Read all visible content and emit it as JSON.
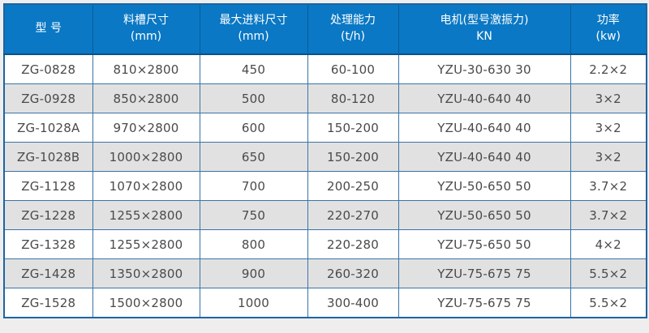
{
  "colors": {
    "header_bg": "#0a78c4",
    "header_text": "#ffffff",
    "header_separator": "#0b5c97",
    "header_bottom_border": "#0a5088",
    "cell_border": "#3a74a8",
    "outer_border": "#1e64a0",
    "row_odd_bg": "#ffffff",
    "row_even_bg": "#e2e1e1",
    "cell_text": "#4a4a4a",
    "page_bg": "#eeeeef"
  },
  "table": {
    "headers": [
      {
        "line1": "型 号",
        "line2": ""
      },
      {
        "line1": "料槽尺寸",
        "line2": "(mm)"
      },
      {
        "line1": "最大进料尺寸",
        "line2": "(mm)"
      },
      {
        "line1": "处理能力",
        "line2": "(t/h)"
      },
      {
        "line1": "电机(型号激振力)",
        "line2": "KN"
      },
      {
        "line1": "功率",
        "line2": "(kw)"
      }
    ],
    "rows": [
      [
        "ZG-0828",
        "810×2800",
        "450",
        "60-100",
        "YZU-30-630 30",
        "2.2×2"
      ],
      [
        "ZG-0928",
        "850×2800",
        "500",
        "80-120",
        "YZU-40-640 40",
        "3×2"
      ],
      [
        "ZG-1028A",
        "970×2800",
        "600",
        "150-200",
        "YZU-40-640 40",
        "3×2"
      ],
      [
        "ZG-1028B",
        "1000×2800",
        "650",
        "150-200",
        "YZU-40-640 40",
        "3×2"
      ],
      [
        "ZG-1128",
        "1070×2800",
        "700",
        "200-250",
        "YZU-50-650 50",
        "3.7×2"
      ],
      [
        "ZG-1228",
        "1255×2800",
        "750",
        "220-270",
        "YZU-50-650 50",
        "3.7×2"
      ],
      [
        "ZG-1328",
        "1255×2800",
        "800",
        "220-280",
        "YZU-75-650 50",
        "4×2"
      ],
      [
        "ZG-1428",
        "1350×2800",
        "900",
        "260-320",
        "YZU-75-675 75",
        "5.5×2"
      ],
      [
        "ZG-1528",
        "1500×2800",
        "1000",
        "300-400",
        "YZU-75-675 75",
        "5.5×2"
      ]
    ]
  }
}
